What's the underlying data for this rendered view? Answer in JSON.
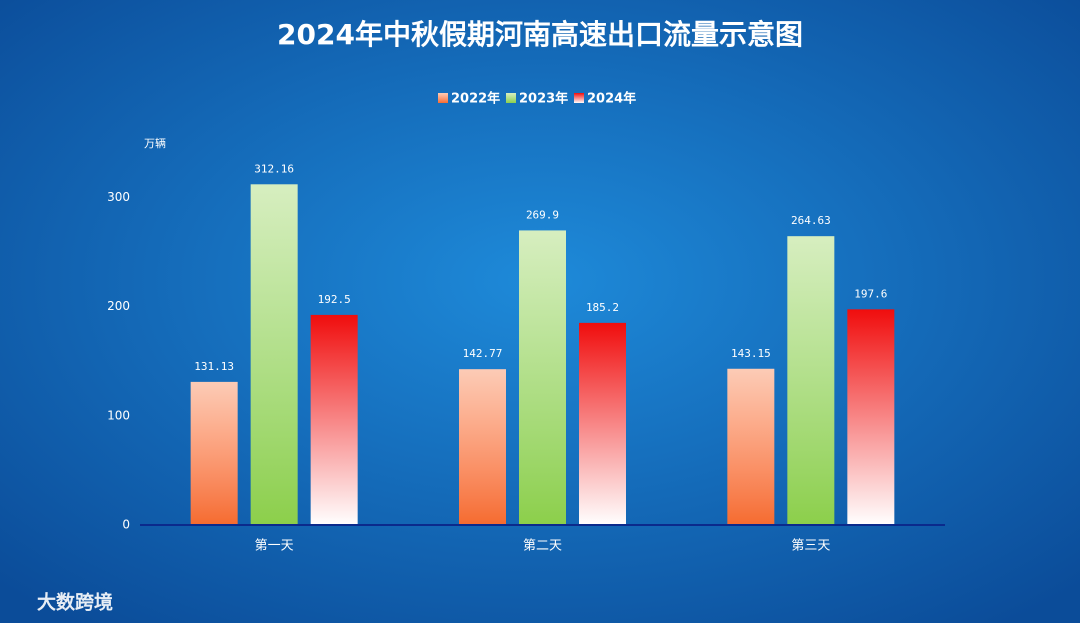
{
  "chart_data": {
    "type": "bar",
    "title": "2024年中秋假期河南高速出口流量示意图",
    "y_label": "万辆",
    "categories": [
      "第一天",
      "第二天",
      "第三天"
    ],
    "series": [
      {
        "name": "2022年",
        "color": "#f56b2e",
        "values": [
          131.13,
          142.77,
          143.15
        ]
      },
      {
        "name": "2023年",
        "color": "#8ccf4a",
        "values": [
          312.16,
          269.9,
          264.63
        ]
      },
      {
        "name": "2024年",
        "color": "#f00d0d",
        "values": [
          192.5,
          185.2,
          197.6
        ]
      }
    ],
    "ylim": [
      0,
      350
    ],
    "yticks": [
      0,
      100,
      200,
      300
    ],
    "grid": false,
    "legend": "top",
    "watermark": "大数跨境"
  }
}
